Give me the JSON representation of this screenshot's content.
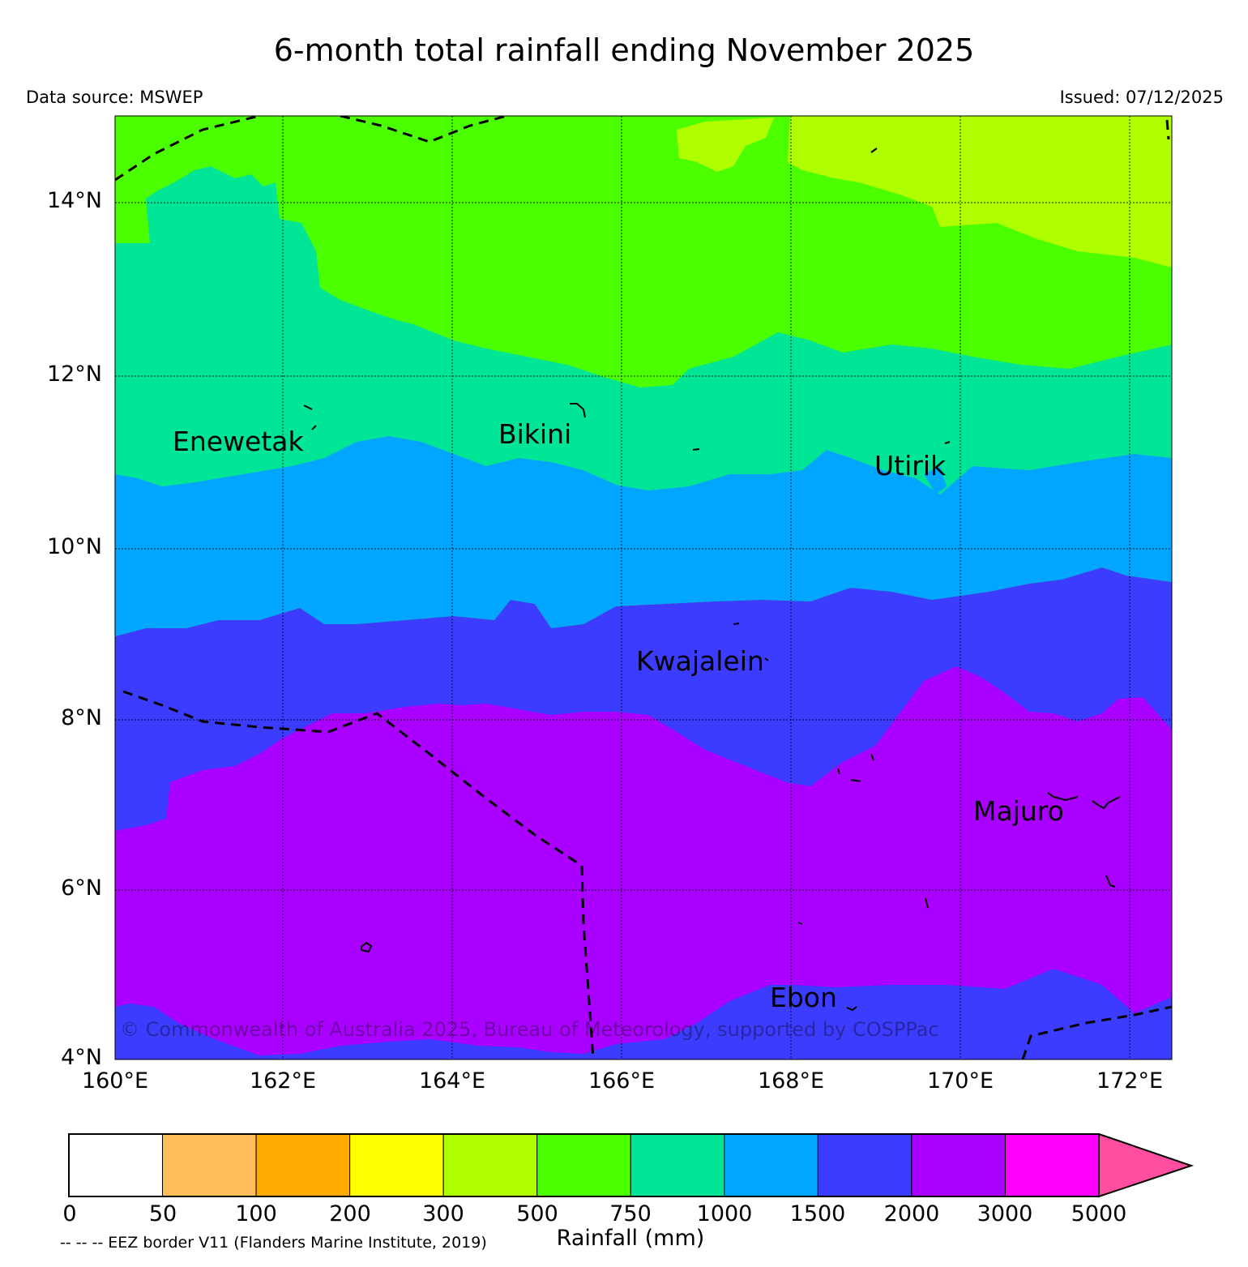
{
  "header": {
    "title": "6-month total rainfall ending November 2025",
    "data_source": "Data source: MSWEP",
    "issued": "Issued: 07/12/2025"
  },
  "map": {
    "lat_ticks": [
      "14°N",
      "12°N",
      "10°N",
      "8°N",
      "6°N",
      "4°N"
    ],
    "lon_ticks": [
      "160°E",
      "162°E",
      "164°E",
      "166°E",
      "168°E",
      "170°E",
      "172°E"
    ],
    "places": [
      "Enewetak",
      "Bikini",
      "Utirik",
      "Kwajalein",
      "Majuro",
      "Ebon"
    ],
    "copyright": "© Commonwealth of Australia 2025, Bureau of Meteorology, supported by COSPPac",
    "zone_colors": [
      "#b0ff00",
      "#4cff00",
      "#00e696",
      "#00a6ff",
      "#3c3cff",
      "#aa00ff"
    ]
  },
  "colorbar": {
    "label": "Rainfall (mm)",
    "ticks": [
      "0",
      "50",
      "100",
      "200",
      "300",
      "500",
      "750",
      "1000",
      "1500",
      "2000",
      "3000",
      "5000"
    ],
    "colors": [
      "#ffffff",
      "#ffbf5a",
      "#ffaa00",
      "#ffff00",
      "#b0ff00",
      "#4cff00",
      "#00e696",
      "#00a6ff",
      "#3c3cff",
      "#aa00ff",
      "#ff00ff"
    ],
    "extend_color": "#ff4da0"
  },
  "legend_note": "-- -- -- EEZ border V11 (Flanders Marine Institute, 2019)"
}
